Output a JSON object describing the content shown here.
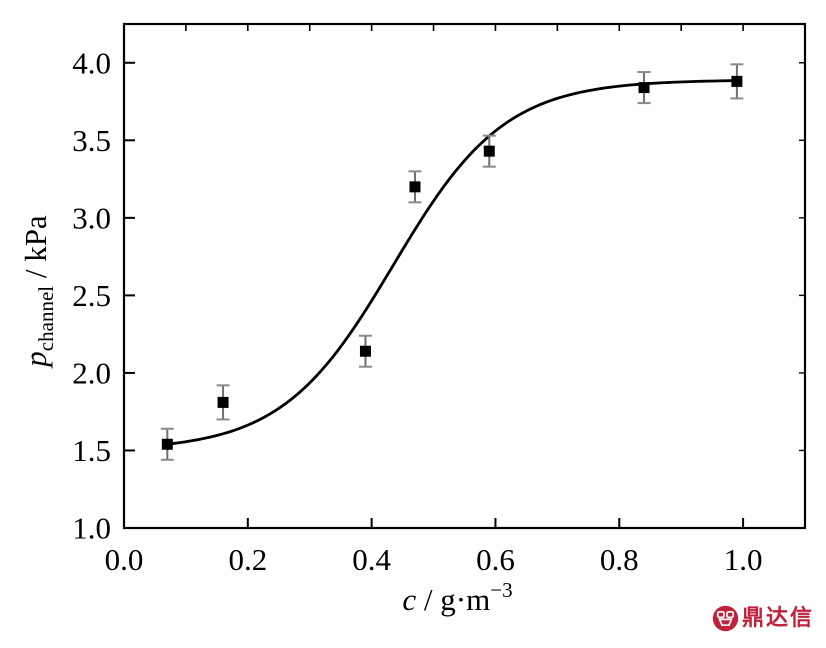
{
  "watermark": {
    "text": "鼎达信",
    "color": "#c0213c"
  },
  "chart_data": {
    "type": "scatter",
    "title": "",
    "xlabel": "c / g·m−3",
    "ylabel": "p_channel / kPa",
    "xlabel_parts": {
      "variable": "c",
      "separator": " / ",
      "unit": "g·m",
      "unit_exponent": "−3"
    },
    "ylabel_parts": {
      "variable": "p",
      "variable_subscript": "channel",
      "separator": " / ",
      "unit": "kPa"
    },
    "xlim": [
      0.0,
      1.1
    ],
    "ylim": [
      1.0,
      4.25
    ],
    "grid": false,
    "legend": null,
    "marker": "filled-square",
    "x_tick_labels": [
      {
        "v": 0.0,
        "label": "0.0"
      },
      {
        "v": 0.2,
        "label": "0.2"
      },
      {
        "v": 0.4,
        "label": "0.4"
      },
      {
        "v": 0.6,
        "label": "0.6"
      },
      {
        "v": 0.8,
        "label": "0.8"
      },
      {
        "v": 1.0,
        "label": "1.0"
      }
    ],
    "y_tick_labels": [
      {
        "v": 1.0,
        "label": "1.0"
      },
      {
        "v": 1.5,
        "label": "1.5"
      },
      {
        "v": 2.0,
        "label": "2.0"
      },
      {
        "v": 2.5,
        "label": "2.5"
      },
      {
        "v": 3.0,
        "label": "3.0"
      },
      {
        "v": 3.5,
        "label": "3.5"
      },
      {
        "v": 4.0,
        "label": "4.0"
      }
    ],
    "x_major_ticks": [
      0.2,
      0.4,
      0.6,
      0.8,
      1.0
    ],
    "y_major_ticks": [
      1.5,
      2.0,
      2.5,
      3.0,
      3.5,
      4.0
    ],
    "x_minor_ticks_top": [
      0.1,
      0.2,
      0.3,
      0.4,
      0.5,
      0.6,
      0.7,
      0.8,
      0.9,
      1.0
    ],
    "y_minor_ticks_right": [
      1.5,
      2.0,
      2.5,
      3.0,
      3.5,
      4.0
    ],
    "points": [
      {
        "x": 0.07,
        "y": 1.54,
        "yerr": 0.1
      },
      {
        "x": 0.16,
        "y": 1.81,
        "yerr": 0.11
      },
      {
        "x": 0.39,
        "y": 2.14,
        "yerr": 0.1
      },
      {
        "x": 0.47,
        "y": 3.2,
        "yerr": 0.1
      },
      {
        "x": 0.59,
        "y": 3.43,
        "yerr": 0.1
      },
      {
        "x": 0.84,
        "y": 3.84,
        "yerr": 0.1
      },
      {
        "x": 0.99,
        "y": 3.88,
        "yerr": 0.11
      }
    ],
    "fit_curve": {
      "type": "boltzmann-sigmoid",
      "A1": 1.5,
      "A2": 3.89,
      "x0": 0.435,
      "dx": 0.09,
      "x_from": 0.07,
      "x_to": 0.99
    },
    "colors": {
      "axis": "#000000",
      "curve": "#000000",
      "marker": "#000000",
      "error_bar": "#6f6f6f",
      "error_bar_cap": "#8a8a8a"
    }
  }
}
